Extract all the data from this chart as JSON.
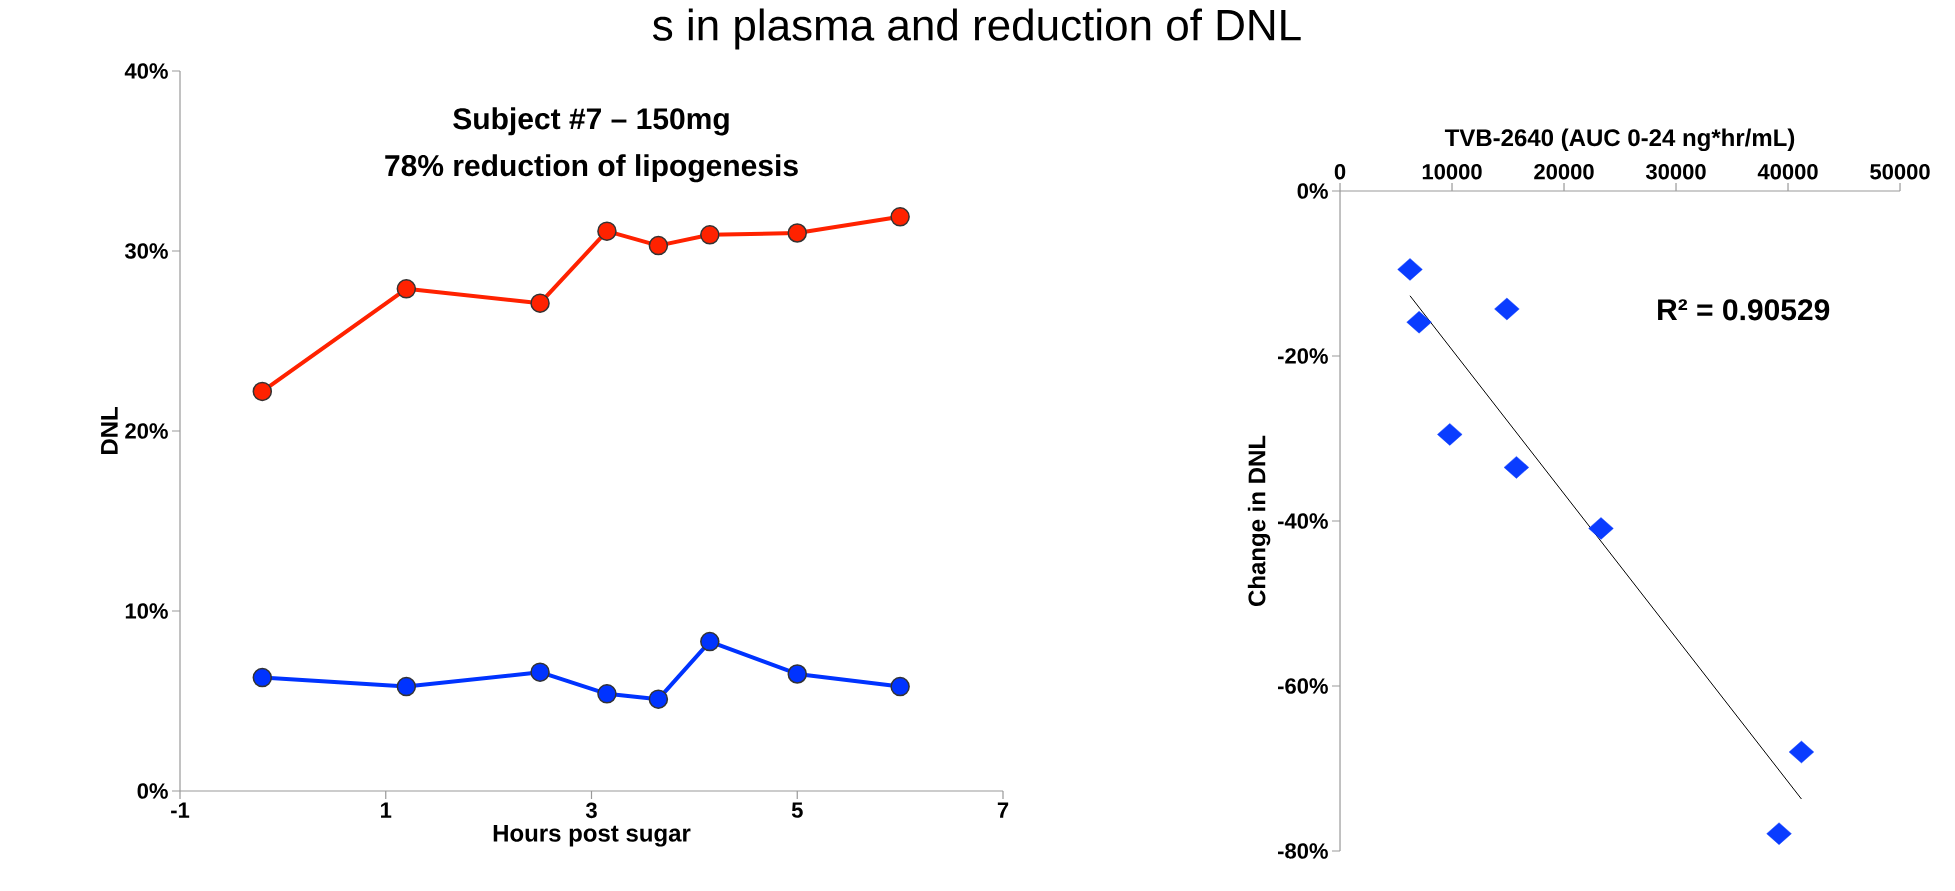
{
  "chart_data": [
    {
      "type": "line",
      "title": "s in plasma and reduction of DNL",
      "xlabel": "Hours post sugar",
      "ylabel": "DNL",
      "annotations": [
        "Subject #7 – 150mg",
        "78% reduction of lipogenesis"
      ],
      "marker": "circle",
      "line_style": "solid",
      "x": [
        -0.2,
        1.2,
        2.5,
        3.15,
        3.65,
        4.15,
        5,
        6
      ],
      "series": [
        {
          "color": "#ff2200",
          "values": [
            22.2,
            27.9,
            27.1,
            31.1,
            30.3,
            30.9,
            31.0,
            31.9
          ]
        },
        {
          "color": "#0033ff",
          "values": [
            6.3,
            5.8,
            6.6,
            5.4,
            5.1,
            8.3,
            6.5,
            5.8
          ]
        }
      ],
      "xlim": [
        -1,
        7
      ],
      "ylim": [
        0,
        40
      ],
      "xticks": [
        -1,
        1,
        3,
        5,
        7
      ],
      "yticks": [
        {
          "value": 0,
          "label": "0%"
        },
        {
          "value": 10,
          "label": "10%"
        },
        {
          "value": 20,
          "label": "20%"
        },
        {
          "value": 30,
          "label": "30%"
        },
        {
          "value": 40,
          "label": "40%"
        }
      ]
    },
    {
      "type": "scatter",
      "xlabel": "TVB-2640 (AUC 0-24 ng*hr/mL)",
      "ylabel": "Change in DNL",
      "annotations": [
        "R² = 0.90529"
      ],
      "series": [
        {
          "type": "scatter",
          "marker": "diamond",
          "color": "#0a3cff",
          "x": [
            6250,
            7060,
            14900,
            9800,
            15750,
            23300,
            41200,
            39200
          ],
          "values": [
            -9.5,
            -15.9,
            -14.3,
            -29.5,
            -33.5,
            -40.9,
            -68.0,
            -77.9
          ]
        },
        {
          "type": "line",
          "marker": "none",
          "color": "#000000",
          "x": [
            6250,
            41200
          ],
          "values": [
            -12.7,
            -73.7
          ]
        }
      ],
      "xlim": [
        0,
        50000
      ],
      "ylim": [
        -80,
        0
      ],
      "xticks": [
        0,
        10000,
        20000,
        30000,
        40000,
        50000
      ],
      "yticks": [
        {
          "value": -80,
          "label": "-80%"
        },
        {
          "value": -60,
          "label": "-60%"
        },
        {
          "value": -40,
          "label": "-40%"
        },
        {
          "value": -20,
          "label": "-20%"
        },
        {
          "value": 0,
          "label": "0%"
        }
      ]
    }
  ]
}
